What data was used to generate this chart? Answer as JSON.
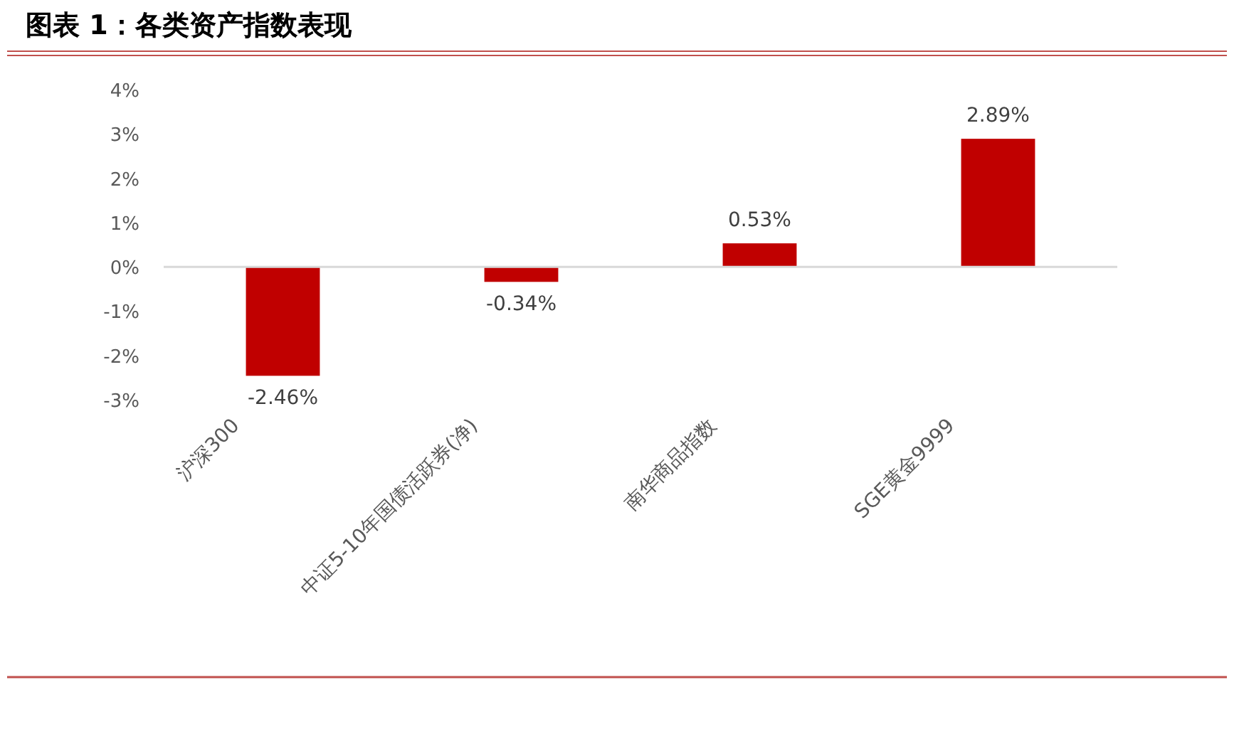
{
  "chart_data": {
    "type": "bar",
    "title": "图表 1：各类资产指数表现",
    "categories": [
      "沪深300",
      "中证5-10年国债活跃券(净)",
      "南华商品指数",
      "SGE黄金9999"
    ],
    "values": [
      -2.46,
      -0.34,
      0.53,
      2.89
    ],
    "value_labels": [
      "-2.46%",
      "-0.34%",
      "0.53%",
      "2.89%"
    ],
    "color": "#c00000",
    "ylim": [
      -3,
      4
    ],
    "yticks": [
      {
        "value": 4,
        "label": "4%"
      },
      {
        "value": 3,
        "label": "3%"
      },
      {
        "value": 2,
        "label": "2%"
      },
      {
        "value": 1,
        "label": "1%"
      },
      {
        "value": 0,
        "label": "0%"
      },
      {
        "value": -1,
        "label": "-1%"
      },
      {
        "value": -2,
        "label": "-2%"
      },
      {
        "value": -3,
        "label": "-3%"
      }
    ]
  }
}
